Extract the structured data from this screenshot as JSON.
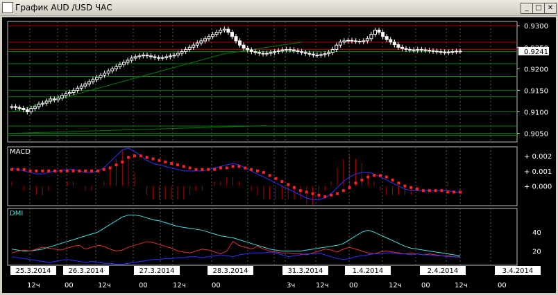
{
  "window": {
    "title": "График AUD /USD  ЧАС",
    "minimize_glyph": "_",
    "restore_glyph": "□",
    "close_glyph": "✕"
  },
  "colors": {
    "background": "#000000",
    "grid": "#5a5a5a",
    "candle": "#ffffff",
    "support_line": "#008000",
    "resistance_line": "#b00000",
    "price_tag_bg": "#ffffff",
    "macd_line": "#3030ff",
    "macd_signal": "#ff2020",
    "macd_hist": "#b00000",
    "dmi_adx": "#40e0e0",
    "dmi_plus": "#e03030",
    "dmi_minus": "#3030ff",
    "date_label_bg": "#ffffff"
  },
  "price_panel": {
    "current_price": "0.9241",
    "y_ticks": [
      "0.9300",
      "0.9250",
      "0.9200",
      "0.9150",
      "0.9100",
      "0.9050"
    ]
  },
  "macd_panel": {
    "label": "MACD",
    "y_ticks": [
      "+ 0.002",
      "+ 0.001",
      "+ 0.000"
    ]
  },
  "dmi_panel": {
    "label": "DMI",
    "y_ticks": [
      "40",
      "20"
    ]
  },
  "time_axis": {
    "dates": [
      "25.3.2014",
      "26.3.2014",
      "27.3.2014",
      "28.3.2014",
      "31.3.2014",
      "1.4.2014",
      "2.4.2014",
      "3.4.2014"
    ],
    "hours": [
      "12ч",
      "00",
      "12ч",
      "00",
      "12ч",
      "00",
      "3ч",
      "12ч",
      "00",
      "12ч",
      "00",
      "12ч",
      "00"
    ]
  },
  "chart_data": {
    "type": "candlestick",
    "title": "График AUD /USD  ЧАС",
    "symbol": "AUD /USD",
    "timeframe": "ЧАС",
    "ylim": [
      0.903,
      0.931
    ],
    "price_closes": [
      0.9112,
      0.911,
      0.9108,
      0.9105,
      0.91,
      0.9108,
      0.9112,
      0.9118,
      0.912,
      0.9125,
      0.913,
      0.9128,
      0.9132,
      0.9138,
      0.9142,
      0.9145,
      0.915,
      0.9155,
      0.916,
      0.9165,
      0.917,
      0.9175,
      0.918,
      0.9185,
      0.919,
      0.9195,
      0.92,
      0.9205,
      0.921,
      0.9215,
      0.922,
      0.9225,
      0.9228,
      0.923,
      0.9232,
      0.923,
      0.9228,
      0.9226,
      0.9225,
      0.9226,
      0.9228,
      0.923,
      0.9232,
      0.9236,
      0.924,
      0.9245,
      0.925,
      0.9255,
      0.926,
      0.9265,
      0.927,
      0.9275,
      0.928,
      0.9285,
      0.929,
      0.9292,
      0.9285,
      0.9275,
      0.9265,
      0.9255,
      0.9248,
      0.9244,
      0.924,
      0.9238,
      0.9236,
      0.9235,
      0.9236,
      0.9238,
      0.924,
      0.9242,
      0.9244,
      0.9245,
      0.9244,
      0.9242,
      0.924,
      0.9238,
      0.9236,
      0.9234,
      0.9232,
      0.9232,
      0.9233,
      0.9235,
      0.9238,
      0.9245,
      0.9255,
      0.9262,
      0.9265,
      0.9266,
      0.9265,
      0.9264,
      0.9263,
      0.9265,
      0.927,
      0.928,
      0.929,
      0.9285,
      0.9275,
      0.9268,
      0.9262,
      0.9256,
      0.925,
      0.9247,
      0.9245,
      0.9244,
      0.9243,
      0.9245,
      0.9244,
      0.9243,
      0.9242,
      0.9241,
      0.924,
      0.9239,
      0.9238,
      0.9239,
      0.924,
      0.9241,
      0.9241
    ],
    "horizontal_levels": [
      {
        "price": 0.93,
        "color": "resistance"
      },
      {
        "price": 0.9262,
        "color": "resistance"
      },
      {
        "price": 0.9245,
        "color": "resistance"
      },
      {
        "price": 0.924,
        "color": "support"
      },
      {
        "price": 0.9212,
        "color": "support"
      },
      {
        "price": 0.9182,
        "color": "support"
      },
      {
        "price": 0.915,
        "color": "support"
      },
      {
        "price": 0.9135,
        "color": "support"
      },
      {
        "price": 0.91,
        "color": "support"
      },
      {
        "price": 0.9067,
        "color": "support"
      },
      {
        "price": 0.905,
        "color": "support"
      },
      {
        "price": 0.9045,
        "color": "support"
      }
    ],
    "trendlines": [
      {
        "from": [
          0,
          0.91
        ],
        "to": [
          55,
          0.9235
        ]
      },
      {
        "from": [
          55,
          0.9235
        ],
        "to": [
          75,
          0.9262
        ]
      },
      {
        "from": [
          0,
          0.905
        ],
        "to": [
          66,
          0.9068
        ]
      }
    ],
    "macd": {
      "ylim": [
        -0.0013,
        0.0026
      ],
      "macd": [
        0.0012,
        0.0011,
        0.001,
        0.0009,
        0.0008,
        0.0008,
        0.0009,
        0.001,
        0.001,
        0.0011,
        0.0011,
        0.001,
        0.0009,
        0.0009,
        0.001,
        0.0012,
        0.0016,
        0.002,
        0.0024,
        0.0025,
        0.0023,
        0.002,
        0.0017,
        0.0015,
        0.0014,
        0.0013,
        0.0012,
        0.0011,
        0.001,
        0.001,
        0.001,
        0.001,
        0.0011,
        0.0012,
        0.0013,
        0.0014,
        0.0015,
        0.0014,
        0.0012,
        0.001,
        0.0008,
        0.0006,
        0.0004,
        0.0002,
        0.0,
        -0.0002,
        -0.0004,
        -0.0006,
        -0.0008,
        -0.0009,
        -0.0009,
        -0.0008,
        -0.0005,
        -0.0001,
        0.0003,
        0.0006,
        0.0008,
        0.0009,
        0.0009,
        0.0008,
        0.0006,
        0.0004,
        0.0002,
        0.0,
        -0.0002,
        -0.0003,
        -0.0003,
        -0.0003,
        -0.0003,
        -0.0003,
        -0.0003,
        -0.0003,
        -0.0004,
        -0.0004
      ],
      "signal": [
        0.0011,
        0.0011,
        0.0011,
        0.001,
        0.001,
        0.001,
        0.001,
        0.001,
        0.001,
        0.001,
        0.001,
        0.001,
        0.001,
        0.001,
        0.001,
        0.0011,
        0.0012,
        0.0014,
        0.0016,
        0.0019,
        0.002,
        0.002,
        0.0019,
        0.0018,
        0.0017,
        0.0016,
        0.0015,
        0.0014,
        0.0013,
        0.0012,
        0.0011,
        0.0011,
        0.0011,
        0.0011,
        0.0012,
        0.0012,
        0.0013,
        0.0013,
        0.0012,
        0.0011,
        0.001,
        0.0009,
        0.0007,
        0.0005,
        0.0003,
        0.0001,
        -0.0001,
        -0.0003,
        -0.0004,
        -0.0005,
        -0.0006,
        -0.0007,
        -0.0006,
        -0.0005,
        -0.0003,
        -0.0001,
        0.0002,
        0.0004,
        0.0006,
        0.0007,
        0.0007,
        0.0006,
        0.0004,
        0.0002,
        0.0,
        -0.0001,
        -0.0002,
        -0.0003,
        -0.0003,
        -0.0003,
        -0.0003,
        -0.0004,
        -0.0004,
        -0.0004
      ]
    },
    "dmi": {
      "ylim": [
        5,
        65
      ],
      "adx": [
        22,
        21,
        20,
        20,
        21,
        22,
        24,
        26,
        28,
        30,
        32,
        34,
        36,
        38,
        40,
        44,
        48,
        52,
        56,
        58,
        58,
        57,
        55,
        53,
        52,
        50,
        48,
        46,
        45,
        44,
        43,
        42,
        40,
        38,
        36,
        35,
        34,
        32,
        30,
        28,
        26,
        24,
        22,
        21,
        20,
        20,
        20,
        20,
        21,
        22,
        23,
        24,
        25,
        26,
        28,
        32,
        36,
        40,
        42,
        40,
        37,
        34,
        31,
        28,
        25,
        23,
        22,
        21,
        20,
        19,
        18,
        17,
        16,
        15
      ],
      "plus_di": [
        18,
        20,
        21,
        20,
        22,
        24,
        23,
        22,
        21,
        23,
        25,
        26,
        22,
        24,
        26,
        25,
        22,
        20,
        21,
        24,
        26,
        28,
        30,
        29,
        27,
        25,
        23,
        20,
        19,
        18,
        20,
        22,
        21,
        19,
        17,
        20,
        30,
        26,
        24,
        22,
        25,
        22,
        20,
        19,
        18,
        18,
        17,
        17,
        16,
        18,
        20,
        22,
        21,
        19,
        22,
        24,
        22,
        20,
        18,
        17,
        19,
        20,
        19,
        18,
        17,
        18,
        17,
        16,
        17,
        16,
        15,
        15,
        14,
        14
      ],
      "minus_di": [
        14,
        13,
        12,
        11,
        10,
        9,
        8,
        9,
        10,
        11,
        10,
        9,
        8,
        9,
        8,
        7,
        7,
        6,
        6,
        7,
        8,
        9,
        10,
        11,
        11,
        12,
        12,
        13,
        13,
        14,
        14,
        13,
        14,
        15,
        16,
        15,
        14,
        16,
        17,
        18,
        18,
        18,
        19,
        18,
        16,
        14,
        15,
        16,
        17,
        17,
        18,
        16,
        14,
        12,
        11,
        12,
        14,
        15,
        16,
        17,
        17,
        18,
        18,
        17,
        17,
        16,
        17,
        16,
        16,
        15,
        15,
        14,
        14,
        13
      ]
    }
  }
}
